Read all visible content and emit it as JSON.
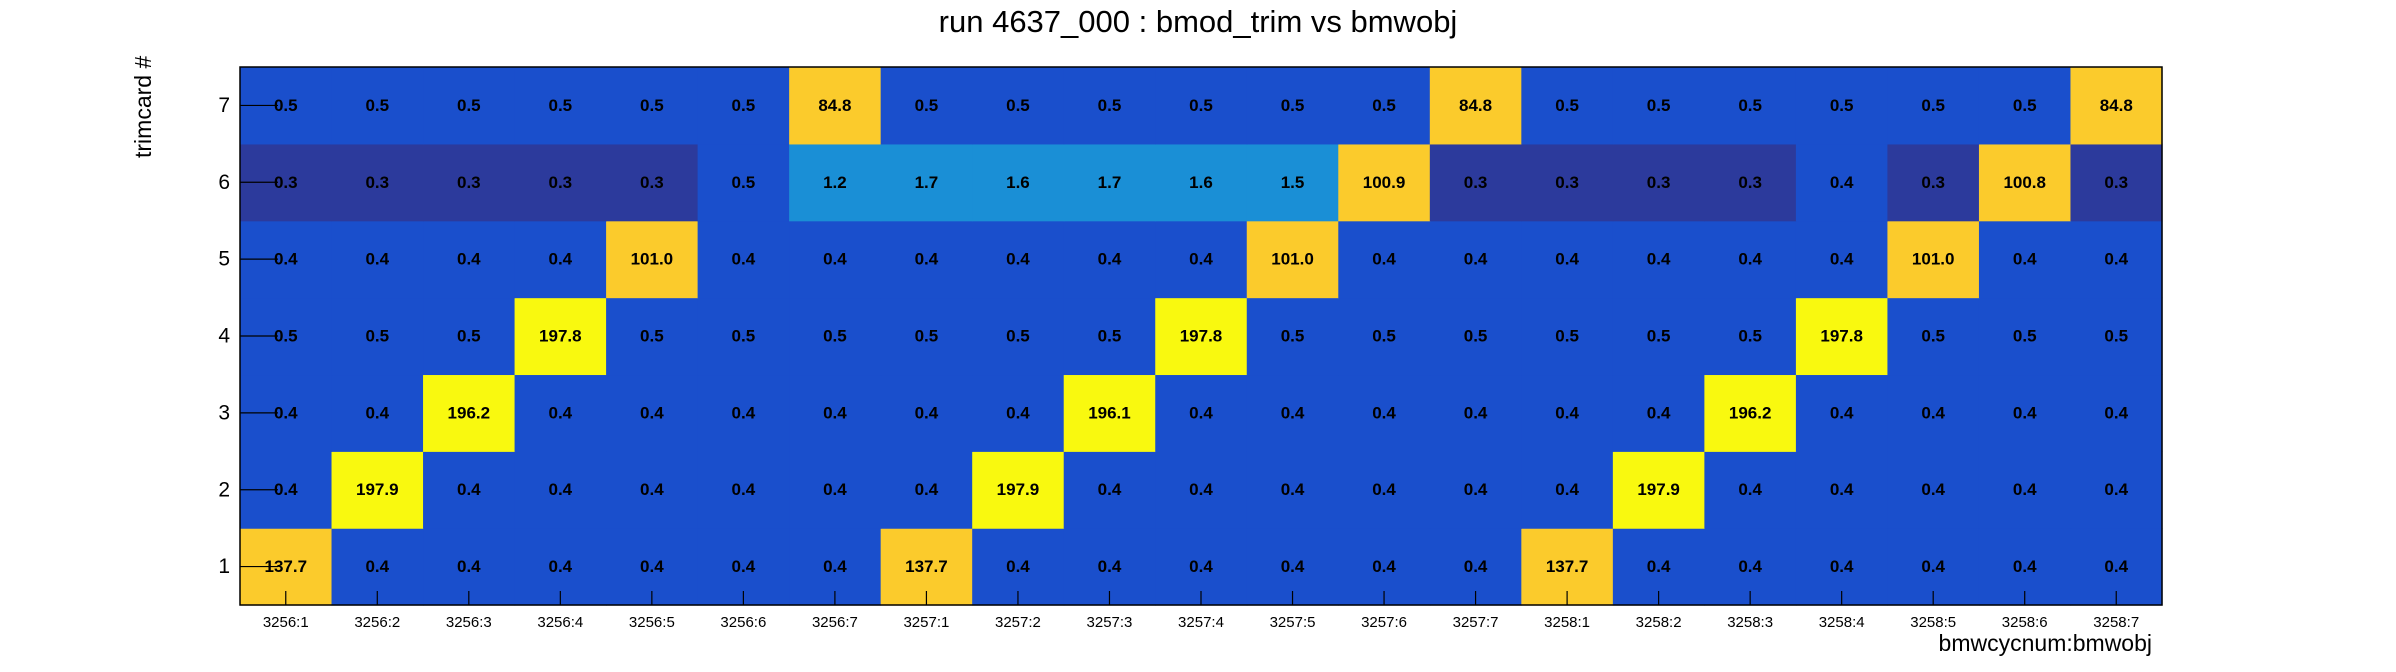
{
  "chart_data": {
    "type": "heatmap",
    "title": "run 4637_000 : bmod_trim vs bmwobj",
    "xlabel": "bmwcycnum:bmwobj",
    "ylabel": "trimcard #",
    "x_categories": [
      "3256:1",
      "3256:2",
      "3256:3",
      "3256:4",
      "3256:5",
      "3256:6",
      "3256:7",
      "3257:1",
      "3257:2",
      "3257:3",
      "3257:4",
      "3257:5",
      "3257:6",
      "3257:7",
      "3258:1",
      "3258:2",
      "3258:3",
      "3258:4",
      "3258:5",
      "3258:6",
      "3258:7"
    ],
    "y_categories": [
      "1",
      "2",
      "3",
      "4",
      "5",
      "6",
      "7"
    ],
    "values": [
      [
        137.7,
        0.4,
        0.4,
        0.4,
        0.4,
        0.4,
        0.4,
        137.7,
        0.4,
        0.4,
        0.4,
        0.4,
        0.4,
        0.4,
        137.7,
        0.4,
        0.4,
        0.4,
        0.4,
        0.4,
        0.4
      ],
      [
        0.4,
        197.9,
        0.4,
        0.4,
        0.4,
        0.4,
        0.4,
        0.4,
        197.9,
        0.4,
        0.4,
        0.4,
        0.4,
        0.4,
        0.4,
        197.9,
        0.4,
        0.4,
        0.4,
        0.4,
        0.4
      ],
      [
        0.4,
        0.4,
        196.2,
        0.4,
        0.4,
        0.4,
        0.4,
        0.4,
        0.4,
        196.1,
        0.4,
        0.4,
        0.4,
        0.4,
        0.4,
        0.4,
        196.2,
        0.4,
        0.4,
        0.4,
        0.4
      ],
      [
        0.5,
        0.5,
        0.5,
        197.8,
        0.5,
        0.5,
        0.5,
        0.5,
        0.5,
        0.5,
        197.8,
        0.5,
        0.5,
        0.5,
        0.5,
        0.5,
        0.5,
        197.8,
        0.5,
        0.5,
        0.5
      ],
      [
        0.4,
        0.4,
        0.4,
        0.4,
        101.0,
        0.4,
        0.4,
        0.4,
        0.4,
        0.4,
        0.4,
        101.0,
        0.4,
        0.4,
        0.4,
        0.4,
        0.4,
        0.4,
        101.0,
        0.4,
        0.4
      ],
      [
        0.3,
        0.3,
        0.3,
        0.3,
        0.3,
        0.5,
        1.2,
        1.7,
        1.6,
        1.7,
        1.6,
        1.5,
        100.9,
        0.3,
        0.3,
        0.3,
        0.3,
        0.4,
        0.3,
        100.8,
        0.3
      ],
      [
        0.5,
        0.5,
        0.5,
        0.5,
        0.5,
        0.5,
        84.8,
        0.5,
        0.5,
        0.5,
        0.5,
        0.5,
        0.5,
        84.8,
        0.5,
        0.5,
        0.5,
        0.5,
        0.5,
        0.5,
        84.8
      ]
    ],
    "cell_labels": [
      [
        "137.7",
        "0.4",
        "0.4",
        "0.4",
        "0.4",
        "0.4",
        "0.4",
        "137.7",
        "0.4",
        "0.4",
        "0.4",
        "0.4",
        "0.4",
        "0.4",
        "137.7",
        "0.4",
        "0.4",
        "0.4",
        "0.4",
        "0.4",
        "0.4"
      ],
      [
        "0.4",
        "197.9",
        "0.4",
        "0.4",
        "0.4",
        "0.4",
        "0.4",
        "0.4",
        "197.9",
        "0.4",
        "0.4",
        "0.4",
        "0.4",
        "0.4",
        "0.4",
        "197.9",
        "0.4",
        "0.4",
        "0.4",
        "0.4",
        "0.4"
      ],
      [
        "0.4",
        "0.4",
        "196.2",
        "0.4",
        "0.4",
        "0.4",
        "0.4",
        "0.4",
        "0.4",
        "196.1",
        "0.4",
        "0.4",
        "0.4",
        "0.4",
        "0.4",
        "0.4",
        "196.2",
        "0.4",
        "0.4",
        "0.4",
        "0.4"
      ],
      [
        "0.5",
        "0.5",
        "0.5",
        "197.8",
        "0.5",
        "0.5",
        "0.5",
        "0.5",
        "0.5",
        "0.5",
        "197.8",
        "0.5",
        "0.5",
        "0.5",
        "0.5",
        "0.5",
        "0.5",
        "197.8",
        "0.5",
        "0.5",
        "0.5"
      ],
      [
        "0.4",
        "0.4",
        "0.4",
        "0.4",
        "101.0",
        "0.4",
        "0.4",
        "0.4",
        "0.4",
        "0.4",
        "0.4",
        "101.0",
        "0.4",
        "0.4",
        "0.4",
        "0.4",
        "0.4",
        "0.4",
        "101.0",
        "0.4",
        "0.4"
      ],
      [
        "0.3",
        "0.3",
        "0.3",
        "0.3",
        "0.3",
        "0.5",
        "1.2",
        "1.7",
        "1.6",
        "1.7",
        "1.6",
        "1.5",
        "100.9",
        "0.3",
        "0.3",
        "0.3",
        "0.3",
        "0.4",
        "0.3",
        "100.8",
        "0.3"
      ],
      [
        "0.5",
        "0.5",
        "0.5",
        "0.5",
        "0.5",
        "0.5",
        "84.8",
        "0.5",
        "0.5",
        "0.5",
        "0.5",
        "0.5",
        "0.5",
        "84.8",
        "0.5",
        "0.5",
        "0.5",
        "0.5",
        "0.5",
        "0.5",
        "84.8"
      ]
    ],
    "colors": {
      "very_low": "#2c3a9c",
      "low": "#1a4fcc",
      "low_mid": "#1a8fd6",
      "mid": "#fbcb2c",
      "high": "#f9f90f"
    },
    "grid": false,
    "legend": "none"
  }
}
